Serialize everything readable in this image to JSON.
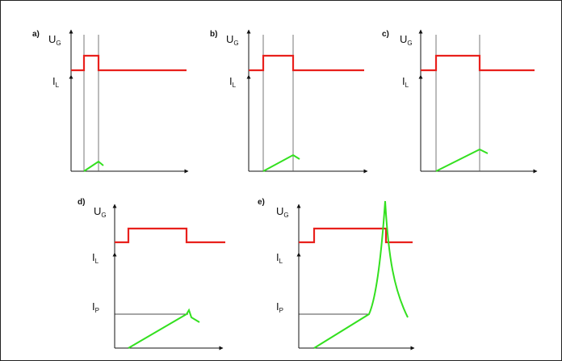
{
  "colors": {
    "gate": "#e8201c",
    "current": "#33e01f",
    "axis": "#111111",
    "guide": "#555555"
  },
  "labels": {
    "ug_main": "U",
    "ug_sub": "G",
    "il_main": "I",
    "il_sub": "L",
    "ip_main": "I",
    "ip_sub": "P"
  },
  "panels": [
    {
      "id": "a",
      "letter": "a)"
    },
    {
      "id": "b",
      "letter": "b)"
    },
    {
      "id": "c",
      "letter": "c)"
    },
    {
      "id": "d",
      "letter": "d)"
    },
    {
      "id": "e",
      "letter": "e)"
    }
  ]
}
